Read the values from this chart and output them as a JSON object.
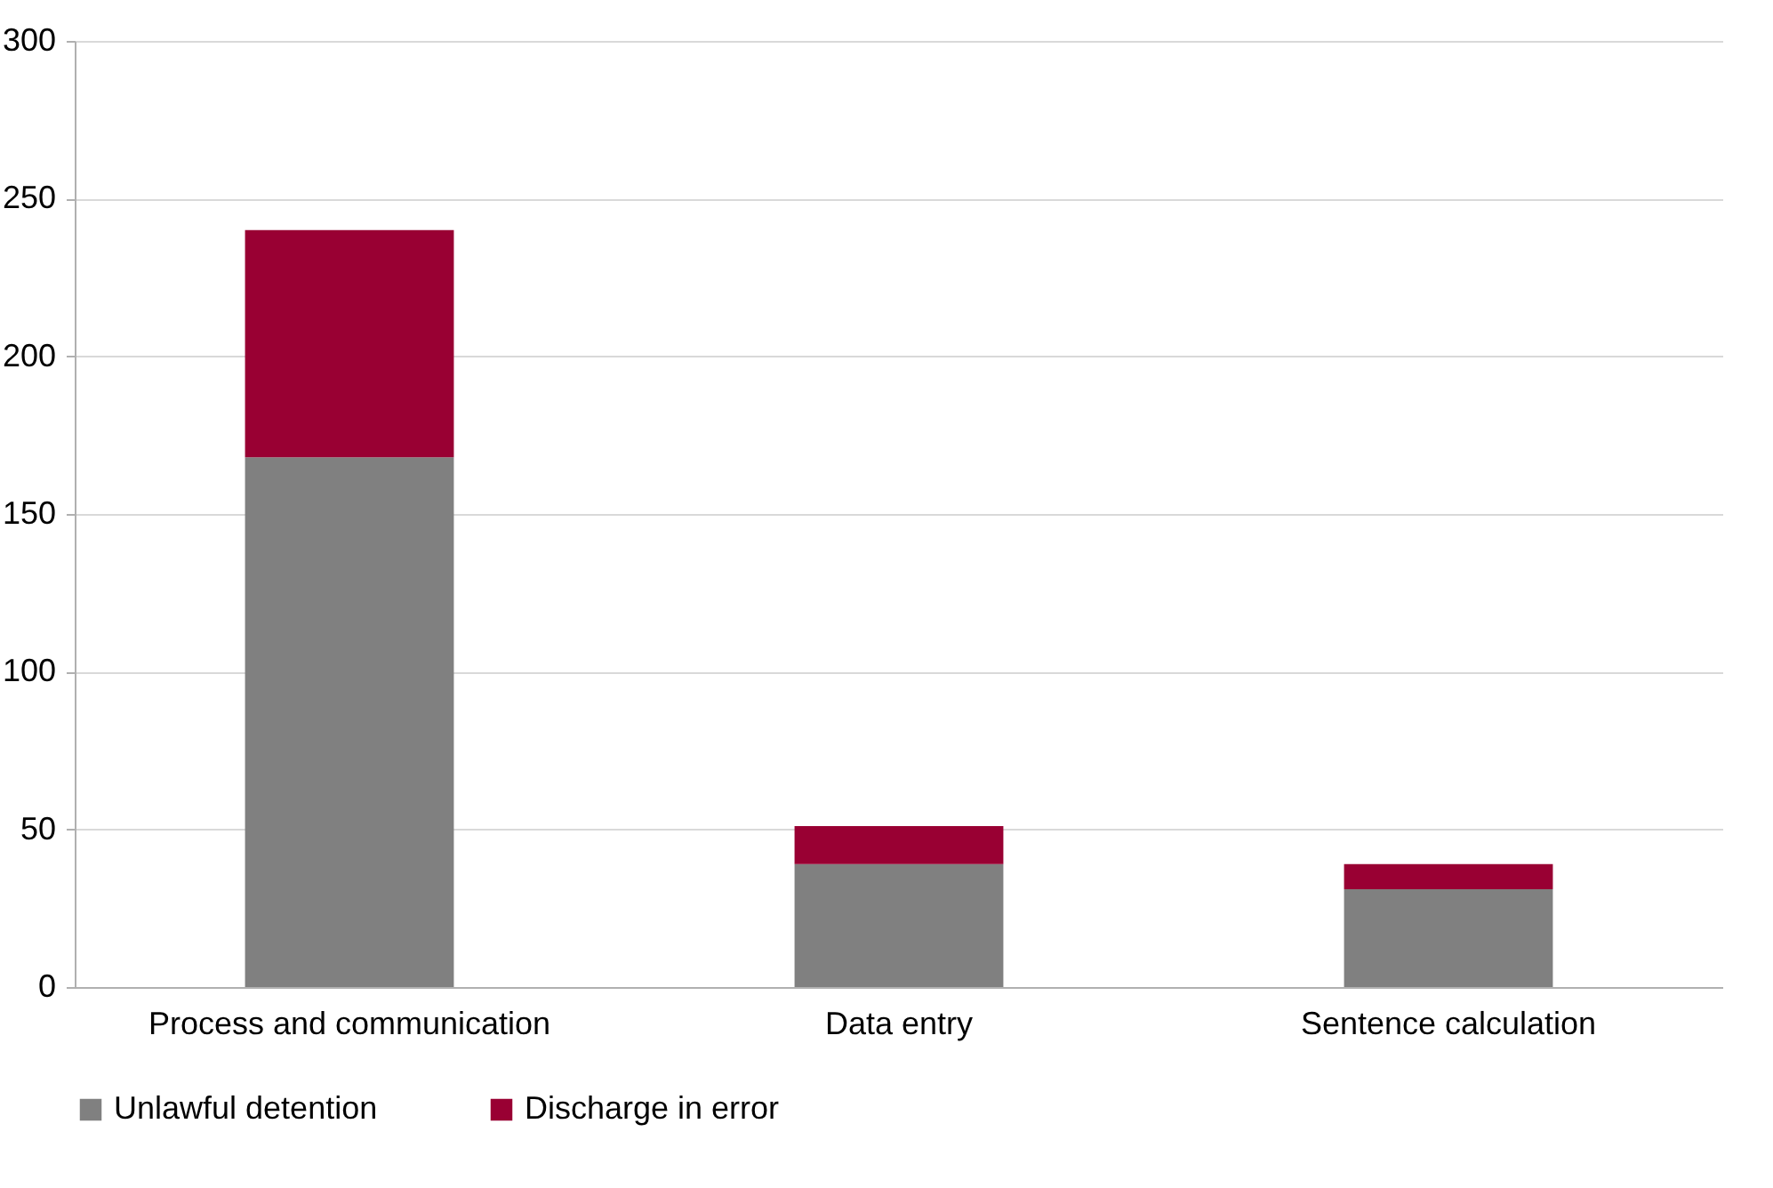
{
  "chart_data": {
    "type": "bar",
    "stacked": true,
    "categories": [
      "Process and communication",
      "Data entry",
      "Sentence calculation"
    ],
    "series": [
      {
        "name": "Unlawful detention",
        "color": "#808080",
        "values": [
          168,
          39,
          31
        ]
      },
      {
        "name": "Discharge in error",
        "color": "#990033",
        "values": [
          72,
          12,
          8
        ]
      }
    ],
    "ylim": [
      0,
      300
    ],
    "yticks": [
      0,
      50,
      100,
      150,
      200,
      250,
      300
    ],
    "grid": "y",
    "legend": "bottom"
  }
}
